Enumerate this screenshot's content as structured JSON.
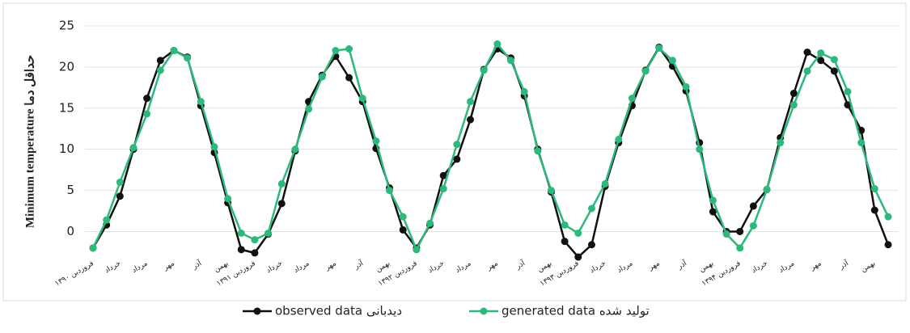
{
  "chart_data": {
    "type": "line",
    "y_label": "Minimum temperature حداقل دما",
    "categories": [
      "فروردین ۱۳۹۰",
      null,
      "خرداد",
      null,
      "مرداد",
      null,
      "مهر",
      null,
      "آذر",
      null,
      "بهمن",
      null,
      "فروردین ۱۳۹۱",
      null,
      "خرداد",
      null,
      "مرداد",
      null,
      "مهر",
      null,
      "آذر",
      null,
      "بهمن",
      null,
      "فروردین ۱۳۹۲",
      null,
      "خرداد",
      null,
      "مرداد",
      null,
      "مهر",
      null,
      "آذر",
      null,
      "بهمن",
      null,
      "فروردین ۱۳۹۳",
      null,
      "خرداد",
      null,
      "مرداد",
      null,
      "مهر",
      null,
      "آذر",
      null,
      "بهمن",
      null,
      "فروردین ۱۳۹۴",
      null,
      "خرداد",
      null,
      "مرداد",
      null,
      "مهر",
      null,
      "آذر",
      null,
      "بهمن",
      null
    ],
    "series": [
      {
        "name": "observed data دیدبانی",
        "color": "#111111",
        "values": [
          -2,
          0.8,
          4.3,
          10,
          16.2,
          20.8,
          22,
          21.2,
          15.3,
          9.6,
          3.5,
          -2.2,
          -2.6,
          -0.3,
          3.4,
          9.8,
          15.8,
          19,
          21.3,
          18.7,
          15.8,
          10.1,
          5.3,
          0.2,
          -2,
          0.8,
          6.8,
          8.8,
          13.6,
          19.7,
          22.2,
          21.1,
          16.5,
          10,
          4.8,
          -1.2,
          -3.1,
          -1.6,
          5.5,
          10.8,
          15.3,
          19.6,
          22.4,
          20.1,
          17.1,
          10.8,
          2.4,
          0,
          0,
          3.1,
          5.1,
          11.4,
          16.8,
          21.8,
          20.8,
          19.5,
          15.4,
          12.3,
          2.6,
          -1.6
        ]
      },
      {
        "name": "generated data تولید شده",
        "color": "#2db87c",
        "values": [
          -2,
          1.4,
          6,
          10.2,
          14.3,
          19.6,
          22,
          21.1,
          15.8,
          10.3,
          4,
          -0.2,
          -1,
          -0.2,
          5.8,
          10,
          14.9,
          18.8,
          22,
          22.2,
          16.2,
          11,
          5,
          1.8,
          -2.2,
          1,
          5.2,
          10.6,
          15.8,
          19.6,
          22.8,
          20.8,
          17,
          9.8,
          5,
          0.8,
          -0.2,
          2.8,
          5.8,
          11.2,
          16.2,
          19.5,
          22.3,
          20.8,
          17.6,
          10,
          3.8,
          -0.3,
          -2,
          0.7,
          5.1,
          10.8,
          15.4,
          19.5,
          21.7,
          20.9,
          17,
          10.8,
          5.2,
          1.8
        ]
      }
    ],
    "ylim": [
      -3,
      25
    ],
    "yticks": [
      0,
      5,
      10,
      15,
      20,
      25
    ],
    "grid": true,
    "legend": "bottom"
  }
}
